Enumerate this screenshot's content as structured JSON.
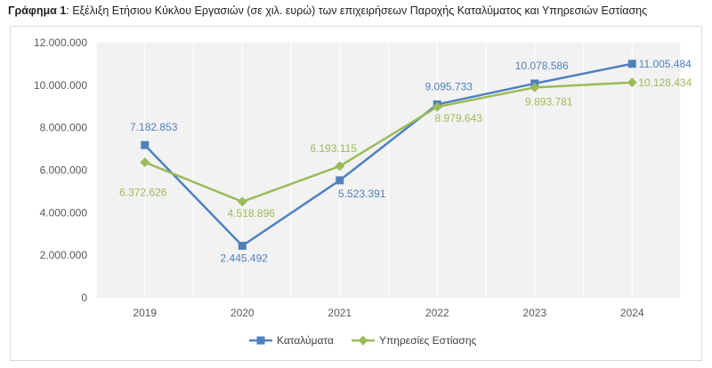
{
  "title_prefix": "Γράφημα 1",
  "title_sep": ": ",
  "title_text": "Εξέλιξη Ετήσιου Κύκλου Εργασιών (σε χιλ. ευρώ) των επιχειρήσεων Παροχής Καταλύματος και Υπηρεσιών Εστίασης",
  "chart_data": {
    "type": "line",
    "categories": [
      "2019",
      "2020",
      "2021",
      "2022",
      "2023",
      "2024"
    ],
    "ylim": [
      0,
      12000000
    ],
    "yticks": [
      0,
      2000000,
      4000000,
      6000000,
      8000000,
      10000000,
      12000000
    ],
    "ytick_labels": [
      "0",
      "2.000.000",
      "4.000.000",
      "6.000.000",
      "8.000.000",
      "10.000.000",
      "12.000.000"
    ],
    "grid": "vertical",
    "legend": "bottom",
    "series": [
      {
        "name": "Καταλύματα",
        "color": "#4f81bd",
        "marker": "square",
        "values": [
          7182853,
          2445492,
          5523391,
          9095733,
          10078586,
          11005484
        ],
        "labels": [
          "7.182.853",
          "2.445.492",
          "5.523.391",
          "9.095.733",
          "10.078.586",
          "11.005.484"
        ]
      },
      {
        "name": "Υπηρεσίες Εστίασης",
        "color": "#9bbb59",
        "marker": "diamond",
        "values": [
          6372626,
          4518896,
          6193115,
          8979643,
          9893781,
          10128434
        ],
        "labels": [
          "6.372.626",
          "4.518.896",
          "6.193.115",
          "8.979.643",
          "9.893.781",
          "10.128.434"
        ]
      }
    ]
  }
}
